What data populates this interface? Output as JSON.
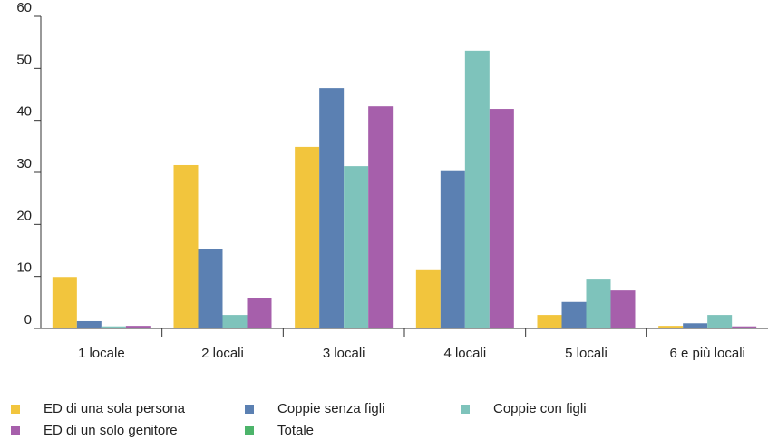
{
  "chart_data": {
    "type": "bar",
    "categories": [
      "1 locale",
      "2 locali",
      "3 locali",
      "4 locali",
      "5 locali",
      "6 e più locali"
    ],
    "series": [
      {
        "name": "ED di una sola persona",
        "color": "#f2c53d",
        "values": [
          9.9,
          31.4,
          34.9,
          11.2,
          2.6,
          0.5
        ]
      },
      {
        "name": "Coppie senza figli",
        "color": "#5b80b2",
        "values": [
          1.4,
          15.3,
          46.2,
          30.4,
          5.1,
          1.0
        ]
      },
      {
        "name": "Coppie con figli",
        "color": "#7ec3bb",
        "values": [
          0.4,
          2.6,
          31.2,
          53.4,
          9.4,
          2.6
        ]
      },
      {
        "name": "ED di un solo genitore",
        "color": "#a65fab",
        "values": [
          0.5,
          5.8,
          42.7,
          42.2,
          7.3,
          0.4
        ]
      },
      {
        "name": "Totale",
        "color": "#4cb46a",
        "values": [
          null,
          null,
          null,
          null,
          null,
          null
        ]
      }
    ],
    "ylim": [
      0,
      60
    ],
    "yticks": [
      0,
      10,
      20,
      30,
      40,
      50,
      60
    ],
    "grid": false
  }
}
